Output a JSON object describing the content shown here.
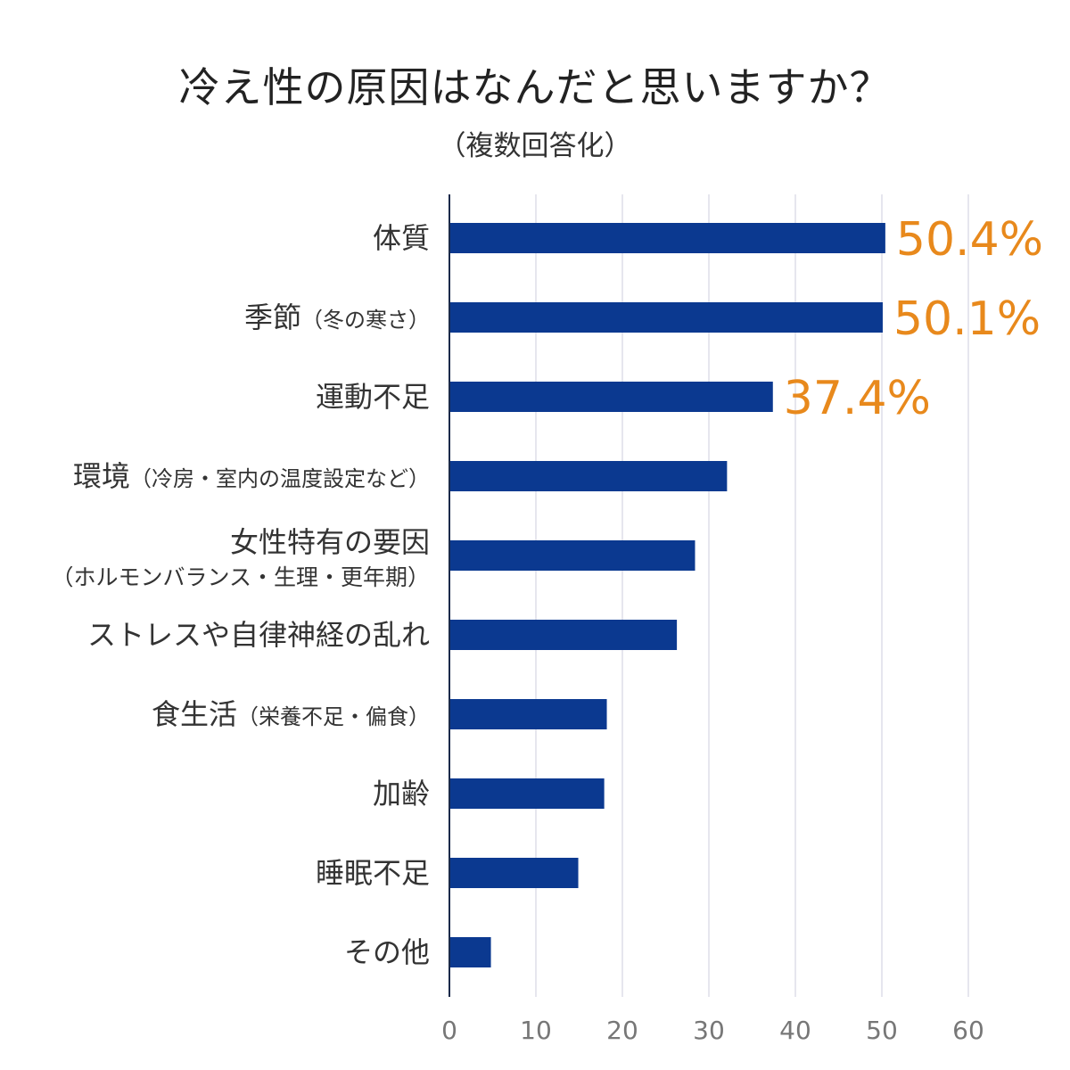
{
  "chart_data": {
    "type": "bar",
    "orientation": "horizontal",
    "title": "冷え性の原因はなんだと思いますか？",
    "subtitle": "（複数回答化）",
    "categories": [
      {
        "main": "体質",
        "sub": ""
      },
      {
        "main": "季節",
        "sub": "（冬の寒さ）"
      },
      {
        "main": "運動不足",
        "sub": ""
      },
      {
        "main": "環境",
        "sub": "（冷房・室内の温度設定など）"
      },
      {
        "main": "女性特有の要因",
        "sub": "（ホルモンバランス・生理・更年期）"
      },
      {
        "main": "ストレスや自律神経の乱れ",
        "sub": ""
      },
      {
        "main": "食生活",
        "sub": "（栄養不足・偏食）"
      },
      {
        "main": "加齢",
        "sub": ""
      },
      {
        "main": "睡眠不足",
        "sub": ""
      },
      {
        "main": "その他",
        "sub": ""
      }
    ],
    "values": [
      50.4,
      50.1,
      37.4,
      32.1,
      28.4,
      26.3,
      18.2,
      17.9,
      14.9,
      4.8
    ],
    "data_labels": [
      "50.4%",
      "50.1%",
      "37.4%",
      "",
      "",
      "",
      "",
      "",
      "",
      ""
    ],
    "xlim": [
      0,
      60
    ],
    "xticks": [
      "0",
      "10",
      "20",
      "30",
      "40",
      "50",
      "60"
    ],
    "grid": true,
    "legend": "none",
    "colors": {
      "bar": "#0b3990",
      "label": "#e8891c",
      "grid": "#e6e6ee",
      "axis": "#1a2a4a"
    }
  }
}
